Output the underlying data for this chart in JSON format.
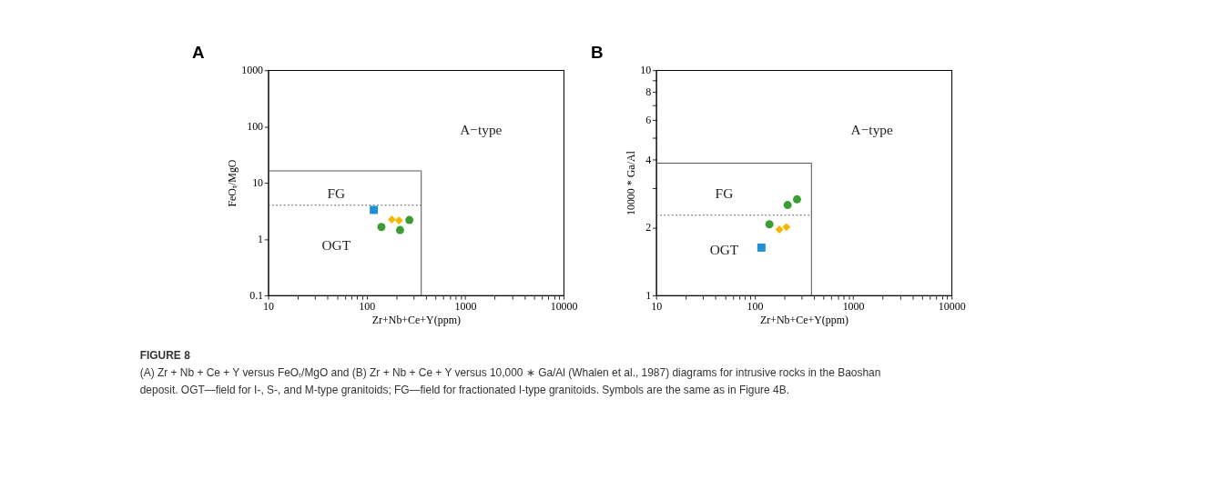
{
  "chart_data": [
    {
      "type": "scatter",
      "title": "A",
      "xlabel": "Zr+Nb+Ce+Y(ppm)",
      "ylabel": "FeOₜ/MgO",
      "log": "xy",
      "grid": false,
      "legend": false,
      "xlim": [
        10,
        10000
      ],
      "ylim": [
        0.1,
        1000
      ],
      "xticks": [
        10,
        {
          "value": 20,
          "label": null
        },
        {
          "value": 30,
          "label": null
        },
        {
          "value": 40,
          "label": null
        },
        {
          "value": 50,
          "label": null
        },
        {
          "value": 60,
          "label": null
        },
        {
          "value": 70,
          "label": null
        },
        {
          "value": 80,
          "label": null
        },
        {
          "value": 90,
          "label": null
        },
        100,
        {
          "value": 200,
          "label": null
        },
        {
          "value": 300,
          "label": null
        },
        {
          "value": 400,
          "label": null
        },
        {
          "value": 500,
          "label": null
        },
        {
          "value": 600,
          "label": null
        },
        {
          "value": 700,
          "label": null
        },
        {
          "value": 800,
          "label": null
        },
        {
          "value": 900,
          "label": null
        },
        1000,
        {
          "value": 2000,
          "label": null
        },
        {
          "value": 3000,
          "label": null
        },
        {
          "value": 4000,
          "label": null
        },
        {
          "value": 5000,
          "label": null
        },
        {
          "value": 6000,
          "label": null
        },
        {
          "value": 7000,
          "label": null
        },
        {
          "value": 8000,
          "label": null
        },
        {
          "value": 9000,
          "label": null
        },
        10000
      ],
      "yticks": [
        0.1,
        1,
        10,
        100,
        1000
      ],
      "series": [
        {
          "type": "line",
          "color": "#555555",
          "line_style": "solid",
          "marker": "none",
          "x": [
            10,
            358,
            358
          ],
          "values": [
            16.3,
            16.3,
            0.1
          ]
        },
        {
          "type": "line",
          "color": "#555555",
          "line_style": "dotted",
          "marker": "none",
          "x": [
            10,
            358
          ],
          "values": [
            4.0,
            4.0
          ]
        },
        {
          "color": "#1f8fd6",
          "marker": "square",
          "x": [
            118
          ],
          "values": [
            3.3
          ]
        },
        {
          "color": "#f5b800",
          "marker": "diamond",
          "x": [
            180,
            213
          ],
          "values": [
            2.23,
            2.14
          ]
        },
        {
          "color": "#3a9e35",
          "marker": "circle",
          "x": [
            141,
            218,
            271
          ],
          "values": [
            1.64,
            1.45,
            2.18
          ]
        }
      ],
      "annotations": [
        "A−type",
        "FG",
        "OGT",
        "FIGURE 8",
        "(A) Zr + Nb + Ce + Y versus FeOₜ/MgO and (B) Zr + Nb + Ce + Y versus 10,000 ∗ Ga/Al (Whalen et al., 1987) diagrams for intrusive rocks in the Baoshan deposit. OGT—field for I-, S-, and M-type granitoids; FG—field for fractionated I-type granitoids. Symbols are the same as in Figure 4B."
      ]
    },
    {
      "type": "scatter",
      "title": "B",
      "xlabel": "Zr+Nb+Ce+Y(ppm)",
      "ylabel": "10000 * Ga/Al",
      "log": "xy",
      "grid": false,
      "legend": false,
      "xlim": [
        10,
        10000
      ],
      "ylim": [
        1,
        10
      ],
      "xticks": [
        10,
        {
          "value": 20,
          "label": null
        },
        {
          "value": 30,
          "label": null
        },
        {
          "value": 40,
          "label": null
        },
        {
          "value": 50,
          "label": null
        },
        {
          "value": 60,
          "label": null
        },
        {
          "value": 70,
          "label": null
        },
        {
          "value": 80,
          "label": null
        },
        {
          "value": 90,
          "label": null
        },
        100,
        {
          "value": 200,
          "label": null
        },
        {
          "value": 300,
          "label": null
        },
        {
          "value": 400,
          "label": null
        },
        {
          "value": 500,
          "label": null
        },
        {
          "value": 600,
          "label": null
        },
        {
          "value": 700,
          "label": null
        },
        {
          "value": 800,
          "label": null
        },
        {
          "value": 900,
          "label": null
        },
        1000,
        {
          "value": 2000,
          "label": null
        },
        {
          "value": 3000,
          "label": null
        },
        {
          "value": 4000,
          "label": null
        },
        {
          "value": 5000,
          "label": null
        },
        {
          "value": 6000,
          "label": null
        },
        {
          "value": 7000,
          "label": null
        },
        {
          "value": 8000,
          "label": null
        },
        {
          "value": 9000,
          "label": null
        },
        10000
      ],
      "yticks": [
        1,
        2,
        {
          "value": 3,
          "label": null
        },
        4,
        {
          "value": 5,
          "label": null
        },
        6,
        {
          "value": 7,
          "label": null
        },
        8,
        {
          "value": 9,
          "label": null
        },
        10
      ],
      "series": [
        {
          "type": "line",
          "color": "#555555",
          "line_style": "solid",
          "marker": "none",
          "x": [
            10,
            377,
            377
          ],
          "values": [
            3.87,
            3.87,
            1
          ]
        },
        {
          "type": "line",
          "color": "#555555",
          "line_style": "dotted",
          "marker": "none",
          "x": [
            10,
            377
          ],
          "values": [
            2.27,
            2.27
          ]
        },
        {
          "color": "#1f8fd6",
          "marker": "square",
          "x": [
            117
          ],
          "values": [
            1.63
          ]
        },
        {
          "color": "#f5b800",
          "marker": "diamond",
          "x": [
            178,
            210
          ],
          "values": [
            1.96,
            2.01
          ]
        },
        {
          "color": "#3a9e35",
          "marker": "circle",
          "x": [
            141,
            216,
            269
          ],
          "values": [
            2.07,
            2.52,
            2.67
          ]
        }
      ],
      "annotations": [
        "A−type",
        "FG",
        "OGT"
      ]
    }
  ]
}
